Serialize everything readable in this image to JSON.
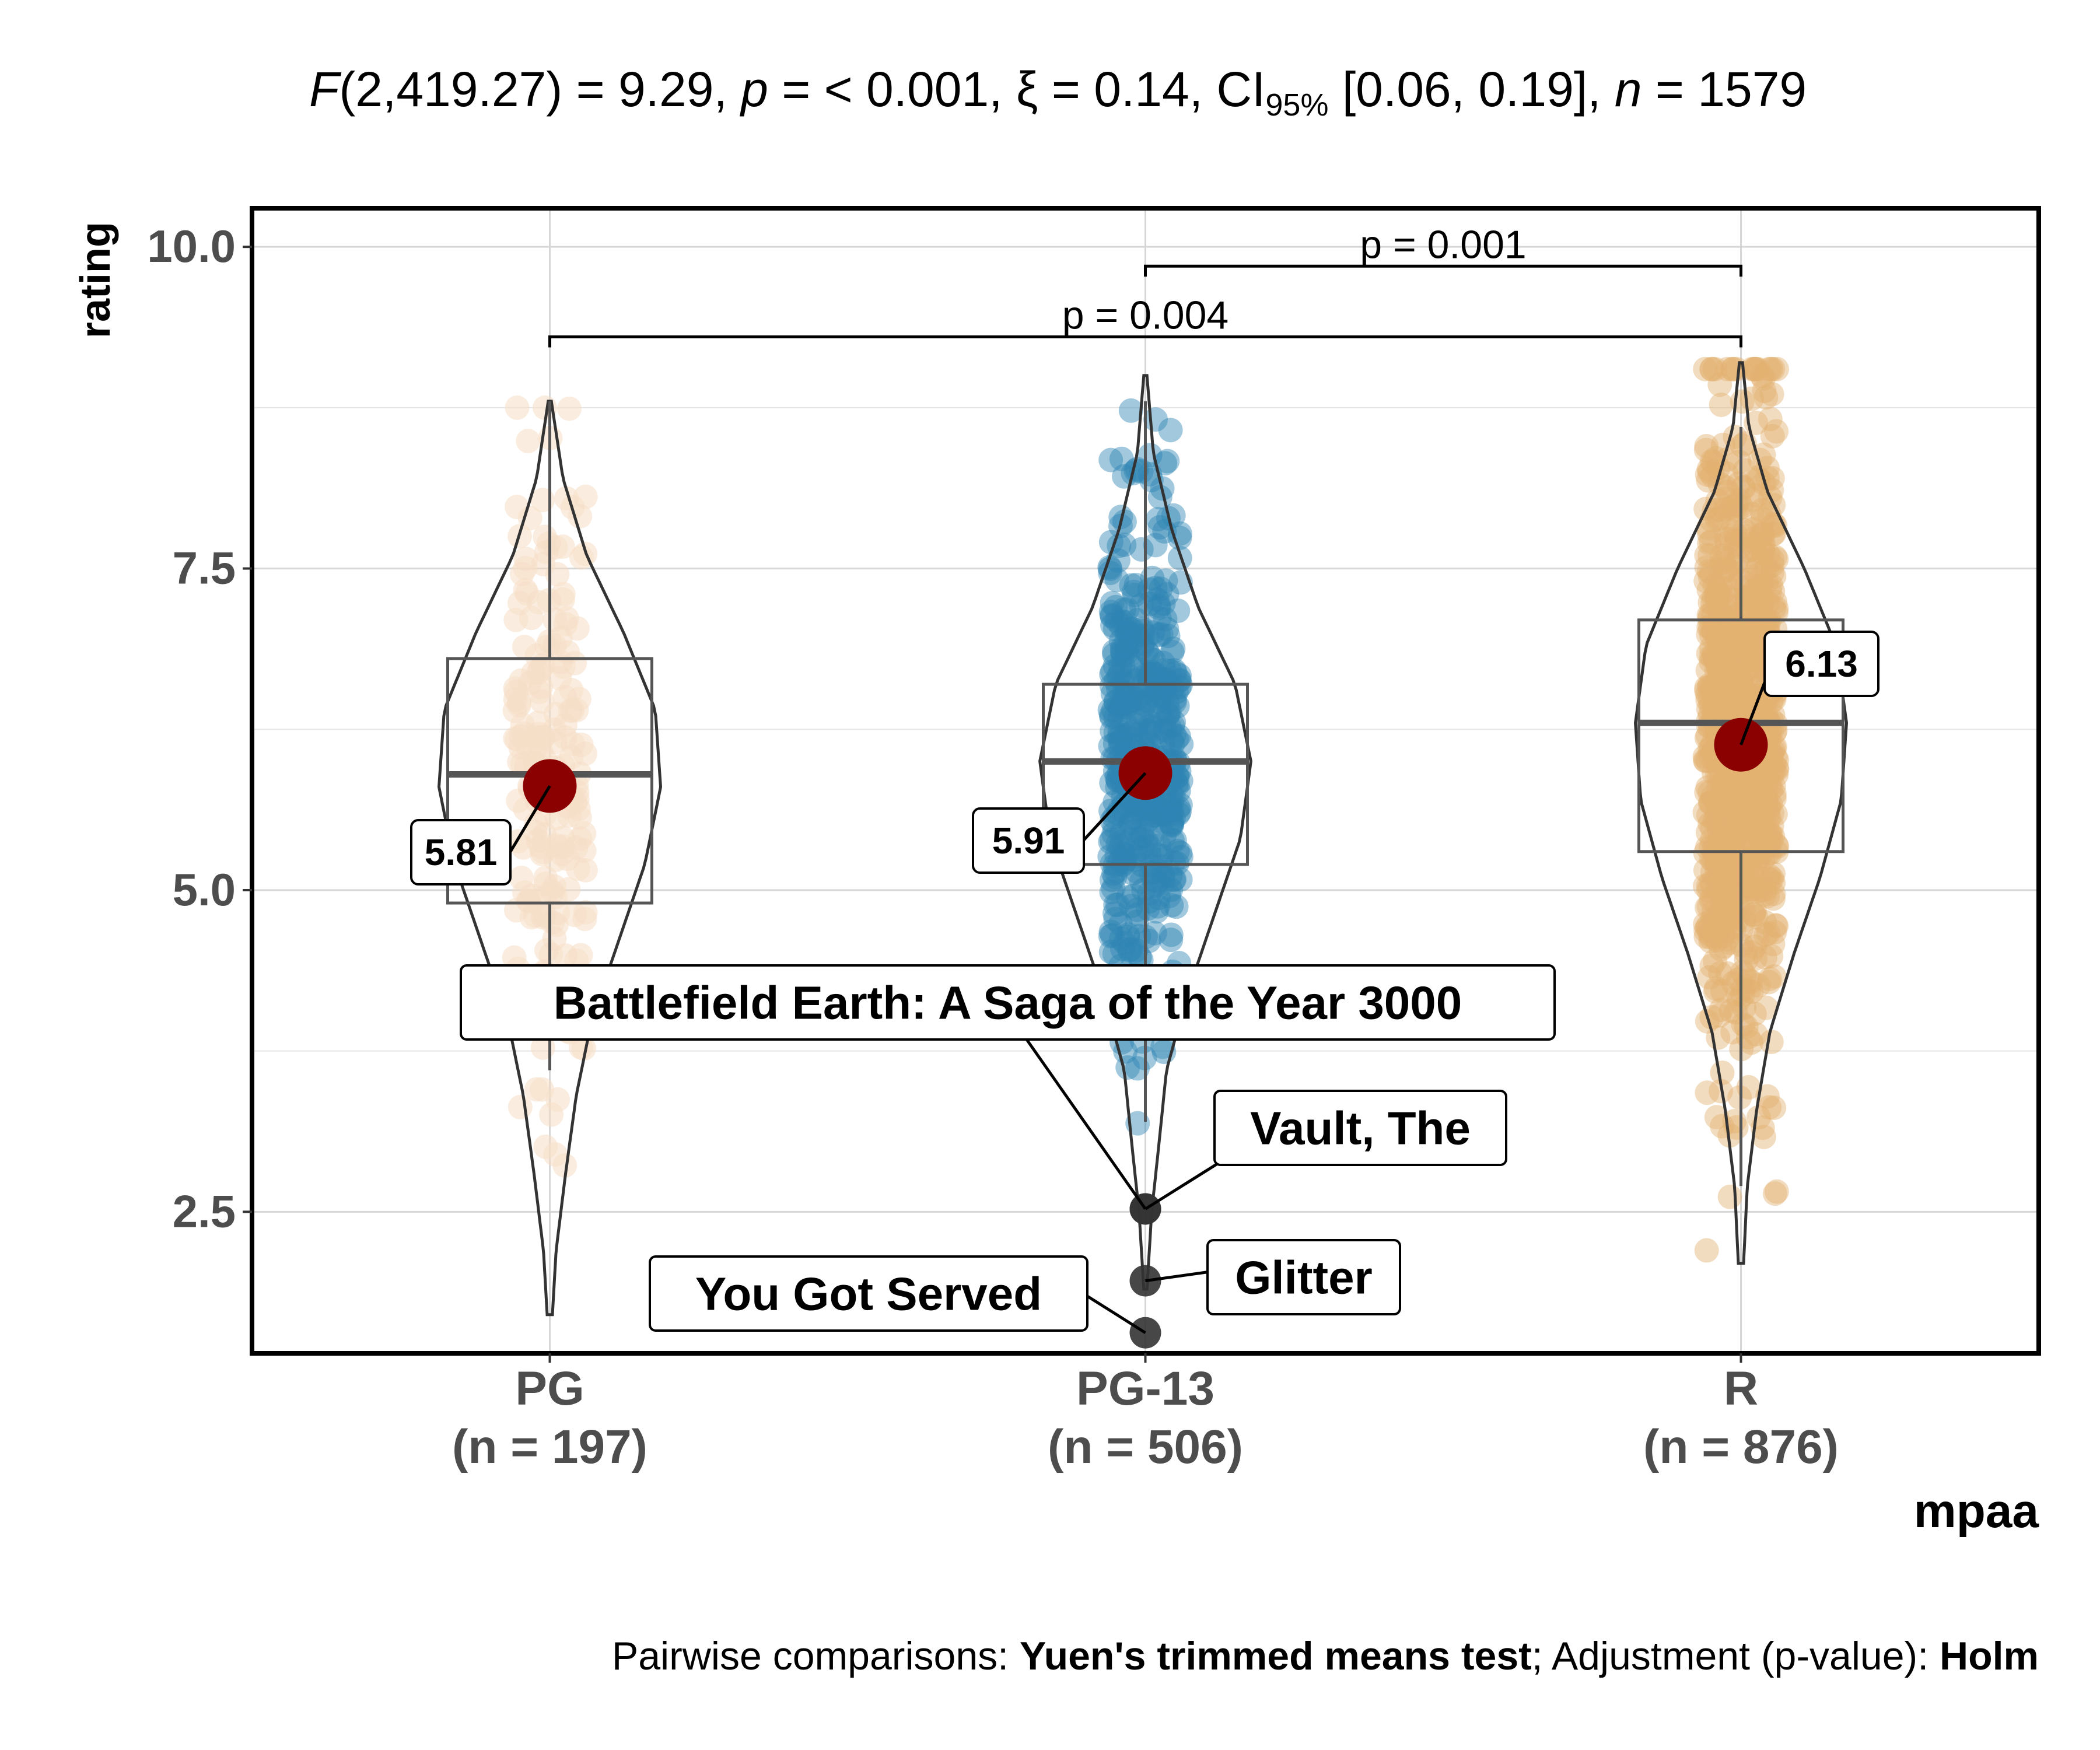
{
  "chart_data": {
    "type": "violin-box-scatter",
    "title": {
      "f_label": "F",
      "f_args": "(2,419.27) = 9.29, ",
      "p_label": "p",
      "p_text": " = < 0.001, ",
      "xi_text": "ξ = 0.14, CI",
      "ci_sub": "95%",
      "ci_text": " [0.06, 0.19], ",
      "n_label": "n",
      "n_text": " = 1579"
    },
    "xlabel": "mpaa",
    "ylabel": "rating",
    "ylim": [
      1.4,
      10.3
    ],
    "yticks": [
      2.5,
      5.0,
      7.5,
      10.0
    ],
    "ytick_labels": [
      "2.5",
      "5.0",
      "7.5",
      "10.0"
    ],
    "grid": true,
    "groups": [
      {
        "key": "PG",
        "label": "PG",
        "n_label": "(n = 197)",
        "n": 197,
        "color": "#F5DEC6",
        "mean": 5.81,
        "mean_label": "5.81",
        "box": {
          "q1": 4.9,
          "median": 5.9,
          "q3": 6.8,
          "whisker_low": 3.6,
          "whisker_high": 8.8
        },
        "violin": {
          "min": 1.7,
          "max": 8.8,
          "profile": [
            [
              1.7,
              0.005
            ],
            [
              2.2,
              0.012
            ],
            [
              2.8,
              0.03
            ],
            [
              3.4,
              0.05
            ],
            [
              4.0,
              0.08
            ],
            [
              4.6,
              0.13
            ],
            [
              5.2,
              0.18
            ],
            [
              5.8,
              0.21
            ],
            [
              6.4,
              0.2
            ],
            [
              7.0,
              0.14
            ],
            [
              7.6,
              0.07
            ],
            [
              8.2,
              0.025
            ],
            [
              8.8,
              0.003
            ]
          ]
        }
      },
      {
        "key": "PG-13",
        "label": "PG-13",
        "n_label": "(n = 506)",
        "n": 506,
        "color": "#2E86B4",
        "mean": 5.91,
        "mean_label": "5.91",
        "box": {
          "q1": 5.2,
          "median": 6.0,
          "q3": 6.6,
          "whisker_low": 3.2,
          "whisker_high": 8.8
        },
        "violin": {
          "min": 1.9,
          "max": 9.0,
          "profile": [
            [
              1.9,
              0.003
            ],
            [
              2.5,
              0.012
            ],
            [
              3.0,
              0.025
            ],
            [
              3.6,
              0.04
            ],
            [
              4.2,
              0.08
            ],
            [
              4.8,
              0.13
            ],
            [
              5.4,
              0.18
            ],
            [
              6.0,
              0.2
            ],
            [
              6.6,
              0.17
            ],
            [
              7.2,
              0.1
            ],
            [
              7.8,
              0.05
            ],
            [
              8.4,
              0.015
            ],
            [
              9.0,
              0.003
            ]
          ]
        }
      },
      {
        "key": "R",
        "label": "R",
        "n_label": "(n = 876)",
        "n": 876,
        "color": "#E3B170",
        "mean": 6.13,
        "mean_label": "6.13",
        "box": {
          "q1": 5.3,
          "median": 6.3,
          "q3": 7.1,
          "whisker_low": 2.7,
          "whisker_high": 8.6
        },
        "violin": {
          "min": 2.1,
          "max": 9.1,
          "profile": [
            [
              2.1,
              0.005
            ],
            [
              2.7,
              0.012
            ],
            [
              3.3,
              0.03
            ],
            [
              3.9,
              0.055
            ],
            [
              4.5,
              0.1
            ],
            [
              5.1,
              0.15
            ],
            [
              5.7,
              0.19
            ],
            [
              6.3,
              0.2
            ],
            [
              6.9,
              0.18
            ],
            [
              7.5,
              0.12
            ],
            [
              8.1,
              0.05
            ],
            [
              8.6,
              0.015
            ],
            [
              9.1,
              0.003
            ]
          ]
        }
      }
    ],
    "outliers": [
      {
        "group": "PG-13",
        "label": "Battlefield Earth: A Saga of the Year 3000",
        "value": 2.4
      },
      {
        "group": "PG-13",
        "label": "Vault, The",
        "value": 2.4
      },
      {
        "group": "PG-13",
        "label": "Glitter",
        "value": 2.1
      },
      {
        "group": "PG-13",
        "label": "You Got Served",
        "value": 1.9
      }
    ],
    "comparisons": [
      {
        "from": "PG-13",
        "to": "R",
        "label": "p = 0.001",
        "y": 9.85
      },
      {
        "from": "PG",
        "to": "R",
        "label": "p = 0.004",
        "y": 9.3
      }
    ],
    "caption": {
      "prefix": "Pairwise comparisons: ",
      "test": "Yuen's trimmed means test",
      "middle": "; Adjustment (p-value): ",
      "method": "Holm"
    },
    "mean_point_color": "#8B0000",
    "outlier_color": "#333333"
  }
}
